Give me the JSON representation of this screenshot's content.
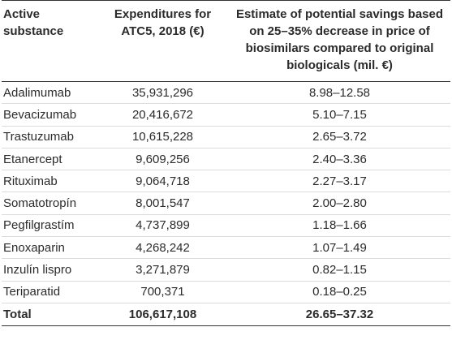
{
  "table": {
    "headers": {
      "substance": "Active substance",
      "expenditures": "Expenditures for ATC5, 2018 (€)",
      "savings": "Estimate of potential savings based on 25–35% decrease in price of biosimilars compared to original biologicals (mil. €)"
    },
    "rows": [
      {
        "substance": "Adalimumab",
        "expenditures": "35,931,296",
        "savings": "8.98–12.58"
      },
      {
        "substance": "Bevacizumab",
        "expenditures": "20,416,672",
        "savings": "5.10–7.15"
      },
      {
        "substance": "Trastuzumab",
        "expenditures": "10,615,228",
        "savings": "2.65–3.72"
      },
      {
        "substance": "Etanercept",
        "expenditures": "9,609,256",
        "savings": "2.40–3.36"
      },
      {
        "substance": "Rituximab",
        "expenditures": "9,064,718",
        "savings": "2.27–3.17"
      },
      {
        "substance": "Somatotropín",
        "expenditures": "8,001,547",
        "savings": "2.00–2.80"
      },
      {
        "substance": "Pegfilgrastím",
        "expenditures": "4,737,899",
        "savings": "1.18–1.66"
      },
      {
        "substance": "Enoxaparin",
        "expenditures": "4,268,242",
        "savings": "1.07–1.49"
      },
      {
        "substance": "Inzulín lispro",
        "expenditures": "3,271,879",
        "savings": "0.82–1.15"
      },
      {
        "substance": "Teriparatid",
        "expenditures": "700,371",
        "savings": "0.18–0.25"
      }
    ],
    "total": {
      "substance": "Total",
      "expenditures": "106,617,108",
      "savings": "26.65–37.32"
    }
  },
  "colors": {
    "text": "#2b2b2b",
    "rule": "#333333",
    "row_divider": "#dcdcdc"
  }
}
